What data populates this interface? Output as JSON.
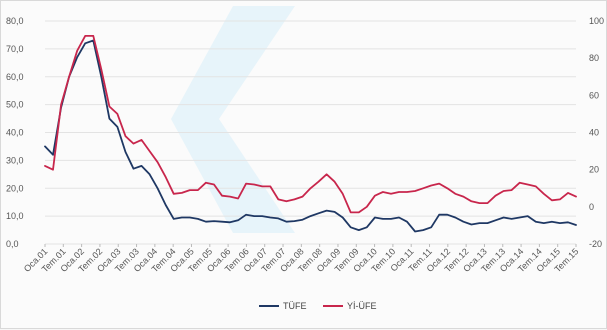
{
  "chart_data": {
    "type": "line",
    "title": "",
    "xlabel": "",
    "ylabel_left": "",
    "ylabel_right": "",
    "y_left": {
      "range": [
        0,
        80
      ],
      "ticks": [
        "0,0",
        "10,0",
        "20,0",
        "30,0",
        "40,0",
        "50,0",
        "60,0",
        "70,0",
        "80,0"
      ]
    },
    "y_right": {
      "range": [
        -20,
        100
      ],
      "ticks": [
        "-20",
        "0",
        "20",
        "40",
        "60",
        "80",
        "100"
      ]
    },
    "x_tick_labels": [
      "Oca.01",
      "Tem.01",
      "Oca.02",
      "Tem.02",
      "Oca.03",
      "Tem.03",
      "Oca.04",
      "Tem.04",
      "Oca.05",
      "Tem.05",
      "Oca.06",
      "Tem.06",
      "Oca.07",
      "Tem.07",
      "Oca.08",
      "Tem.08",
      "Oca.09",
      "Tem.09",
      "Oca.10",
      "Tem.10",
      "Oca.11",
      "Tem.11",
      "Oca.12",
      "Tem.12",
      "Oca.13",
      "Tem.13",
      "Oca.14",
      "Tem.14",
      "Oca.15",
      "Tem.15"
    ],
    "grid": true,
    "legend_position": "bottom",
    "series": [
      {
        "name": "TÜFE",
        "axis": "left",
        "color": "#1f3864",
        "values": [
          35.0,
          32.0,
          49.0,
          60.0,
          67.0,
          72.0,
          73.0,
          60.0,
          45.0,
          42.0,
          33.0,
          27.0,
          28.0,
          25.0,
          20.0,
          14.0,
          9.0,
          9.5,
          9.5,
          9.0,
          8.0,
          8.2,
          8.0,
          7.8,
          8.5,
          10.5,
          10.0,
          10.0,
          9.5,
          9.2,
          8.0,
          8.2,
          8.7,
          10.0,
          11.0,
          12.0,
          11.5,
          9.5,
          6.0,
          5.0,
          6.0,
          9.5,
          9.0,
          9.0,
          9.5,
          8.0,
          4.5,
          5.0,
          6.0,
          10.5,
          10.5,
          9.5,
          8.0,
          7.0,
          7.5,
          7.5,
          8.5,
          9.5,
          9.0,
          9.5,
          10.0,
          8.0,
          7.5,
          8.0,
          7.5,
          7.8,
          6.8
        ]
      },
      {
        "name": "Yİ-ÜFE",
        "axis": "right",
        "color": "#c8264c",
        "values": [
          22.0,
          20.0,
          55.0,
          70.0,
          84.0,
          92.0,
          92.0,
          74.0,
          54.0,
          50.0,
          38.0,
          34.0,
          36.0,
          30.0,
          24.0,
          16.0,
          7.0,
          7.5,
          9.0,
          9.0,
          13.0,
          12.0,
          6.0,
          5.5,
          4.5,
          12.5,
          12.0,
          11.0,
          11.0,
          4.0,
          3.0,
          4.0,
          5.5,
          10.0,
          13.5,
          17.5,
          13.5,
          7.0,
          -3.0,
          -3.0,
          0.0,
          6.0,
          8.0,
          7.0,
          8.0,
          8.0,
          8.5,
          10.0,
          11.5,
          12.5,
          10.0,
          7.0,
          5.5,
          3.0,
          2.0,
          2.0,
          6.0,
          8.5,
          9.0,
          13.0,
          12.0,
          11.0,
          7.0,
          3.5,
          4.0,
          7.5,
          5.5
        ]
      }
    ]
  }
}
